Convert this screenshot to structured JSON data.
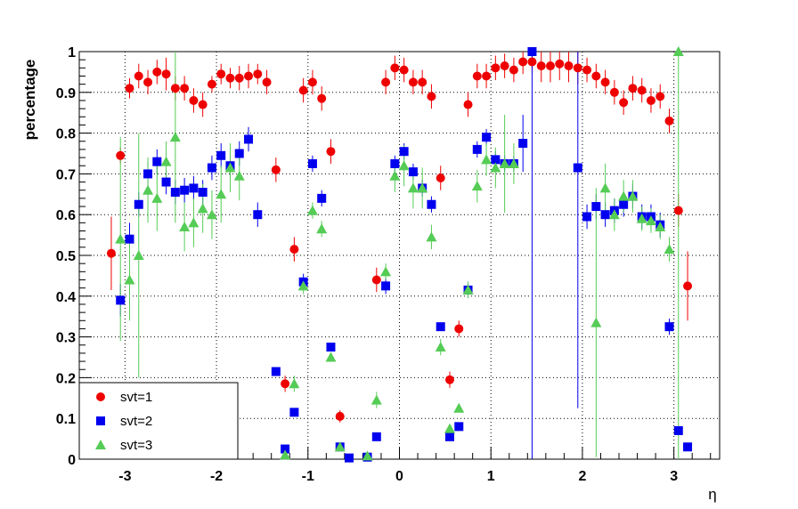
{
  "chart_data": {
    "type": "scatter",
    "xlabel": "η",
    "ylabel": "percentage",
    "xlim": [
      -3.5,
      3.5
    ],
    "ylim": [
      0,
      1
    ],
    "grid": true,
    "legend_position": "bottom-left",
    "x_ticks": [
      -3,
      -2,
      -1,
      0,
      1,
      2,
      3
    ],
    "x_tick_labels": [
      "-3",
      "-2",
      "-1",
      "0",
      "1",
      "2",
      "3"
    ],
    "y_ticks": [
      0,
      0.1,
      0.2,
      0.3,
      0.4,
      0.5,
      0.6,
      0.7,
      0.8,
      0.9,
      1
    ],
    "y_tick_labels": [
      "0",
      "0.1",
      "0.2",
      "0.3",
      "0.4",
      "0.5",
      "0.6",
      "0.7",
      "0.8",
      "0.9",
      "1"
    ],
    "series": [
      {
        "name": "svt=1",
        "marker": "circle",
        "color": "#ee0000",
        "points": [
          [
            -3.15,
            0.505,
            0.09
          ],
          [
            -3.05,
            0.745,
            0.02
          ],
          [
            -2.95,
            0.91,
            0.025
          ],
          [
            -2.85,
            0.94,
            0.03
          ],
          [
            -2.75,
            0.925,
            0.03
          ],
          [
            -2.65,
            0.95,
            0.03
          ],
          [
            -2.55,
            0.945,
            0.04
          ],
          [
            -2.45,
            0.91,
            0.03
          ],
          [
            -2.35,
            0.91,
            0.03
          ],
          [
            -2.25,
            0.88,
            0.03
          ],
          [
            -2.15,
            0.87,
            0.03
          ],
          [
            -2.05,
            0.92,
            0.02
          ],
          [
            -1.95,
            0.945,
            0.025
          ],
          [
            -1.85,
            0.935,
            0.025
          ],
          [
            -1.75,
            0.935,
            0.03
          ],
          [
            -1.65,
            0.94,
            0.03
          ],
          [
            -1.55,
            0.945,
            0.025
          ],
          [
            -1.45,
            0.925,
            0.03
          ],
          [
            -1.35,
            0.71,
            0.03
          ],
          [
            -1.25,
            0.185,
            0.02
          ],
          [
            -1.15,
            0.515,
            0.03
          ],
          [
            -1.05,
            0.905,
            0.03
          ],
          [
            -0.95,
            0.925,
            0.03
          ],
          [
            -0.85,
            0.885,
            0.03
          ],
          [
            -0.75,
            0.755,
            0.03
          ],
          [
            -0.65,
            0.105,
            0.015
          ],
          [
            -0.25,
            0.44,
            0.03
          ],
          [
            -0.15,
            0.925,
            0.03
          ],
          [
            -0.05,
            0.96,
            0.03
          ],
          [
            0.05,
            0.955,
            0.03
          ],
          [
            0.15,
            0.925,
            0.03
          ],
          [
            0.25,
            0.925,
            0.03
          ],
          [
            0.35,
            0.89,
            0.03
          ],
          [
            0.45,
            0.69,
            0.03
          ],
          [
            0.55,
            0.195,
            0.02
          ],
          [
            0.65,
            0.32,
            0.02
          ],
          [
            0.75,
            0.87,
            0.03
          ],
          [
            0.85,
            0.94,
            0.03
          ],
          [
            0.95,
            0.94,
            0.03
          ],
          [
            1.05,
            0.96,
            0.03
          ],
          [
            1.15,
            0.965,
            0.03
          ],
          [
            1.25,
            0.955,
            0.03
          ],
          [
            1.35,
            0.975,
            0.03
          ],
          [
            1.45,
            0.975,
            0.03
          ],
          [
            1.55,
            0.965,
            0.04
          ],
          [
            1.65,
            0.965,
            0.04
          ],
          [
            1.75,
            0.97,
            0.04
          ],
          [
            1.85,
            0.965,
            0.04
          ],
          [
            1.95,
            0.96,
            0.04
          ],
          [
            2.05,
            0.955,
            0.03
          ],
          [
            2.15,
            0.94,
            0.03
          ],
          [
            2.25,
            0.925,
            0.03
          ],
          [
            2.35,
            0.9,
            0.03
          ],
          [
            2.45,
            0.875,
            0.03
          ],
          [
            2.55,
            0.91,
            0.03
          ],
          [
            2.65,
            0.905,
            0.03
          ],
          [
            2.75,
            0.88,
            0.03
          ],
          [
            2.85,
            0.89,
            0.03
          ],
          [
            2.95,
            0.83,
            0.03
          ],
          [
            3.05,
            0.61,
            0.04
          ],
          [
            3.15,
            0.425,
            0.085
          ]
        ]
      },
      {
        "name": "svt=2",
        "marker": "square",
        "color": "#0000ee",
        "points": [
          [
            -3.05,
            0.39,
            0.04
          ],
          [
            -2.95,
            0.54,
            0.04
          ],
          [
            -2.85,
            0.625,
            0.03
          ],
          [
            -2.75,
            0.7,
            0.03
          ],
          [
            -2.65,
            0.73,
            0.03
          ],
          [
            -2.55,
            0.68,
            0.03
          ],
          [
            -2.45,
            0.655,
            0.03
          ],
          [
            -2.35,
            0.66,
            0.03
          ],
          [
            -2.25,
            0.665,
            0.03
          ],
          [
            -2.15,
            0.655,
            0.03
          ],
          [
            -2.05,
            0.715,
            0.03
          ],
          [
            -1.95,
            0.745,
            0.03
          ],
          [
            -1.85,
            0.72,
            0.03
          ],
          [
            -1.75,
            0.75,
            0.03
          ],
          [
            -1.65,
            0.785,
            0.03
          ],
          [
            -1.55,
            0.6,
            0.03
          ],
          [
            -1.35,
            0.215,
            0.01
          ],
          [
            -1.25,
            0.025,
            0.005
          ],
          [
            -1.15,
            0.115,
            0.01
          ],
          [
            -1.05,
            0.435,
            0.02
          ],
          [
            -0.95,
            0.725,
            0.02
          ],
          [
            -0.85,
            0.64,
            0.02
          ],
          [
            -0.75,
            0.275,
            0.01
          ],
          [
            -0.65,
            0.03,
            0.005
          ],
          [
            -0.55,
            0.003,
            0.003
          ],
          [
            -0.35,
            0.005,
            0.003
          ],
          [
            -0.25,
            0.055,
            0.005
          ],
          [
            -0.15,
            0.425,
            0.02
          ],
          [
            -0.05,
            0.725,
            0.02
          ],
          [
            0.05,
            0.755,
            0.02
          ],
          [
            0.15,
            0.705,
            0.02
          ],
          [
            0.25,
            0.665,
            0.02
          ],
          [
            0.35,
            0.625,
            0.02
          ],
          [
            0.45,
            0.325,
            0.01
          ],
          [
            0.55,
            0.055,
            0.005
          ],
          [
            0.65,
            0.08,
            0.005
          ],
          [
            0.75,
            0.415,
            0.02
          ],
          [
            0.85,
            0.76,
            0.02
          ],
          [
            0.95,
            0.79,
            0.02
          ],
          [
            1.05,
            0.735,
            0.02
          ],
          [
            1.15,
            0.725,
            0.02
          ],
          [
            1.25,
            0.725,
            0.02
          ],
          [
            1.35,
            0.775,
            0.07
          ],
          [
            1.45,
            1.0,
            1.0
          ],
          [
            1.95,
            0.715,
            0.59
          ],
          [
            2.05,
            0.595,
            0.03
          ],
          [
            2.15,
            0.62,
            0.03
          ],
          [
            2.25,
            0.6,
            0.03
          ],
          [
            2.35,
            0.61,
            0.03
          ],
          [
            2.45,
            0.625,
            0.03
          ],
          [
            2.55,
            0.645,
            0.03
          ],
          [
            2.65,
            0.595,
            0.03
          ],
          [
            2.75,
            0.595,
            0.03
          ],
          [
            2.85,
            0.575,
            0.03
          ],
          [
            2.95,
            0.325,
            0.02
          ],
          [
            3.05,
            0.07,
            0.01
          ],
          [
            3.15,
            0.03,
            0.005
          ]
        ]
      },
      {
        "name": "svt=3",
        "marker": "triangle",
        "color": "#55cc55",
        "points": [
          [
            -3.05,
            0.54,
            0.25
          ],
          [
            -2.95,
            0.44,
            0.1
          ],
          [
            -2.85,
            0.5,
            0.3
          ],
          [
            -2.75,
            0.66,
            0.08
          ],
          [
            -2.65,
            0.64,
            0.08
          ],
          [
            -2.55,
            0.73,
            0.05
          ],
          [
            -2.45,
            0.79,
            0.21
          ],
          [
            -2.35,
            0.57,
            0.06
          ],
          [
            -2.25,
            0.58,
            0.06
          ],
          [
            -2.15,
            0.615,
            0.06
          ],
          [
            -2.05,
            0.6,
            0.06
          ],
          [
            -1.95,
            0.65,
            0.07
          ],
          [
            -1.85,
            0.715,
            0.06
          ],
          [
            -1.75,
            0.695,
            0.06
          ],
          [
            -1.25,
            0.01,
            0.01
          ],
          [
            -1.15,
            0.185,
            0.02
          ],
          [
            -1.05,
            0.425,
            0.02
          ],
          [
            -0.95,
            0.61,
            0.02
          ],
          [
            -0.85,
            0.565,
            0.02
          ],
          [
            -0.75,
            0.25,
            0.01
          ],
          [
            -0.65,
            0.03,
            0.005
          ],
          [
            -0.35,
            0.008,
            0.004
          ],
          [
            -0.25,
            0.145,
            0.02
          ],
          [
            -0.15,
            0.46,
            0.02
          ],
          [
            -0.05,
            0.695,
            0.04
          ],
          [
            0.05,
            0.72,
            0.05
          ],
          [
            0.15,
            0.665,
            0.05
          ],
          [
            0.25,
            0.665,
            0.05
          ],
          [
            0.35,
            0.545,
            0.03
          ],
          [
            0.45,
            0.275,
            0.02
          ],
          [
            0.55,
            0.075,
            0.005
          ],
          [
            0.65,
            0.125,
            0.01
          ],
          [
            0.75,
            0.415,
            0.02
          ],
          [
            0.85,
            0.67,
            0.04
          ],
          [
            0.95,
            0.735,
            0.04
          ],
          [
            1.05,
            0.715,
            0.05
          ],
          [
            1.15,
            0.725,
            0.12
          ],
          [
            1.25,
            0.725,
            0.05
          ],
          [
            2.15,
            0.335,
            0.33
          ],
          [
            2.25,
            0.665,
            0.06
          ],
          [
            2.35,
            0.6,
            0.04
          ],
          [
            2.45,
            0.645,
            0.04
          ],
          [
            2.55,
            0.645,
            0.04
          ],
          [
            2.65,
            0.59,
            0.03
          ],
          [
            2.75,
            0.585,
            0.03
          ],
          [
            2.85,
            0.57,
            0.03
          ],
          [
            2.95,
            0.515,
            0.03
          ],
          [
            3.05,
            1.0,
            1.0
          ]
        ]
      }
    ]
  },
  "legend": {
    "items": [
      {
        "label": "svt=1",
        "marker": "circle",
        "color": "#ee0000"
      },
      {
        "label": "svt=2",
        "marker": "square",
        "color": "#0000ee"
      },
      {
        "label": "svt=3",
        "marker": "triangle",
        "color": "#55cc55"
      }
    ]
  },
  "colors": {
    "background": "#ffffff",
    "axes": "#000000",
    "grid": "#000000"
  }
}
